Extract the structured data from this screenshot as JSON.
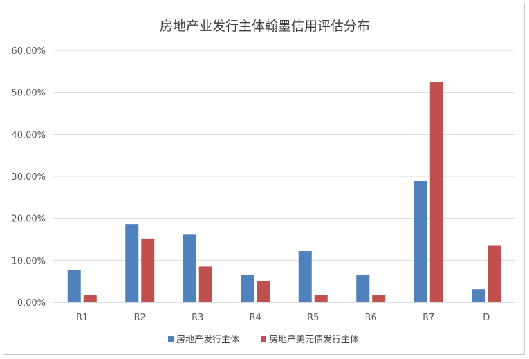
{
  "chart_data": {
    "type": "bar",
    "title": "房地产业发行主体翰墨信用评估分布",
    "categories": [
      "R1",
      "R2",
      "R3",
      "R4",
      "R5",
      "R6",
      "R7",
      "D"
    ],
    "ytick_labels": [
      "0.00%",
      "10.00%",
      "20.00%",
      "30.00%",
      "40.00%",
      "50.00%",
      "60.00%"
    ],
    "ylim": [
      0,
      60
    ],
    "grid": true,
    "legend_position": "bottom",
    "series": [
      {
        "name": "房地产发行主体",
        "color": "#4f81bd",
        "values": [
          7.7,
          18.6,
          16.1,
          6.6,
          12.2,
          6.6,
          29.0,
          3.1
        ]
      },
      {
        "name": "房地产美元债发行主体",
        "color": "#c0504d",
        "values": [
          1.7,
          15.2,
          8.5,
          5.1,
          1.7,
          1.7,
          52.5,
          13.6
        ]
      }
    ]
  }
}
